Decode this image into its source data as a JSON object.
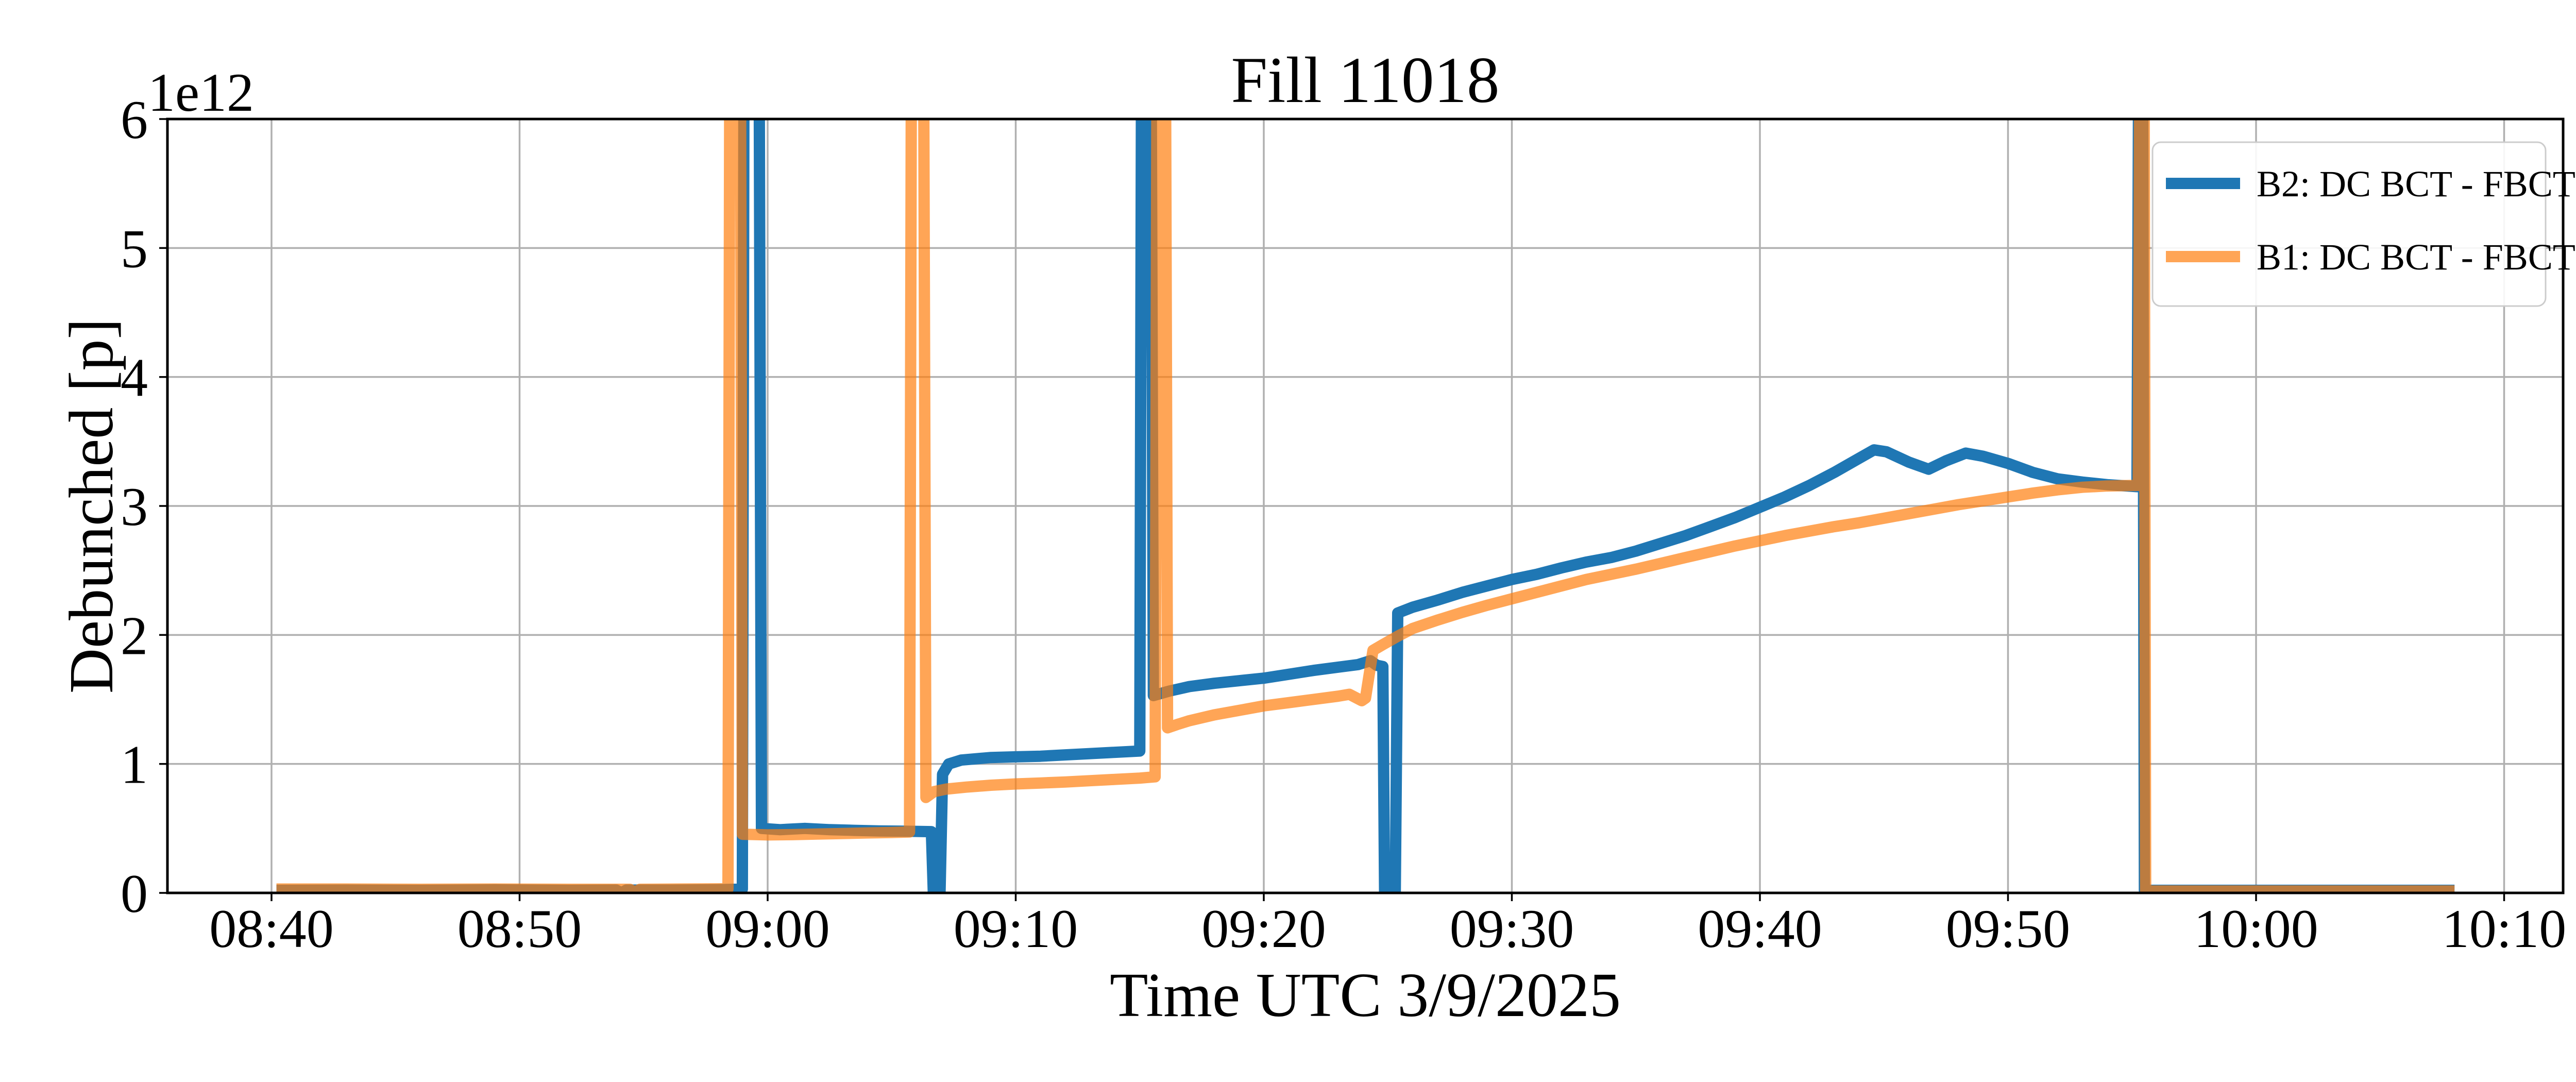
{
  "figure": {
    "title": "Fill 11018",
    "xlabel": "Time UTC 3/9/2025",
    "ylabel": "Debunched [p]",
    "offset_text": "1e12"
  },
  "legend": {
    "entries": [
      {
        "label": "B2: DC BCT - FBCT",
        "color": "#1f77b4",
        "alpha": 1.0
      },
      {
        "label": "B1: DC BCT - FBCT",
        "color": "#ff7f0e",
        "alpha": 0.7
      }
    ]
  },
  "colors": {
    "b2_blue": "#1f77b4",
    "b1_orange": "#ff7f0e",
    "overlap_brown": "#c17d40",
    "grid": "#b0b0b0",
    "spine": "#000000",
    "legend_border": "#cccccc",
    "background": "#ffffff"
  },
  "chart_data": {
    "type": "line",
    "title": "Fill 11018",
    "xlabel": "Time UTC 3/9/2025",
    "ylabel": "Debunched [p]",
    "y_unit_offset": "1e12",
    "grid": true,
    "legend_position": "upper right",
    "ylim": [
      0,
      6
    ],
    "yticks": [
      0,
      1,
      2,
      3,
      4,
      5,
      6
    ],
    "xlim_minutes_after_0840": [
      -4.2,
      92.4
    ],
    "x_ticks": [
      {
        "minutes": 0,
        "label": "08:40"
      },
      {
        "minutes": 10,
        "label": "08:50"
      },
      {
        "minutes": 20,
        "label": "09:00"
      },
      {
        "minutes": 30,
        "label": "09:10"
      },
      {
        "minutes": 40,
        "label": "09:20"
      },
      {
        "minutes": 50,
        "label": "09:30"
      },
      {
        "minutes": 60,
        "label": "09:40"
      },
      {
        "minutes": 70,
        "label": "09:50"
      },
      {
        "minutes": 80,
        "label": "10:00"
      },
      {
        "minutes": 90,
        "label": "10:10"
      }
    ],
    "x_axis_note": "x values below are minutes after 08:40 UTC; y values are in units of 1e12 protons; spikes stored as 7 are off-scale (clipped at ylim 6)",
    "series": [
      {
        "name": "B2: DC BCT - FBCT",
        "color": "#1f77b4",
        "alpha": 1.0,
        "points": [
          [
            0.2,
            0.02
          ],
          [
            3,
            0.022
          ],
          [
            6,
            0.02
          ],
          [
            9,
            0.024
          ],
          [
            12,
            0.02
          ],
          [
            13.9,
            0.022
          ],
          [
            14.1,
            0.0
          ],
          [
            14.3,
            0.022
          ],
          [
            16,
            0.022
          ],
          [
            18,
            0.025
          ],
          [
            18.98,
            0.03
          ],
          [
            19.05,
            7
          ],
          [
            19.65,
            7
          ],
          [
            19.75,
            0.5
          ],
          [
            20.5,
            0.49
          ],
          [
            21.5,
            0.5
          ],
          [
            22.5,
            0.49
          ],
          [
            23.5,
            0.485
          ],
          [
            24.5,
            0.48
          ],
          [
            25.5,
            0.478
          ],
          [
            26.6,
            0.475
          ],
          [
            26.68,
            0.0
          ],
          [
            26.95,
            0.0
          ],
          [
            27.05,
            0.92
          ],
          [
            27.3,
            1.0
          ],
          [
            27.8,
            1.03
          ],
          [
            29,
            1.05
          ],
          [
            30,
            1.055
          ],
          [
            31,
            1.06
          ],
          [
            32,
            1.07
          ],
          [
            33,
            1.08
          ],
          [
            34,
            1.09
          ],
          [
            35.0,
            1.1
          ],
          [
            35.08,
            7
          ],
          [
            35.45,
            7
          ],
          [
            35.55,
            1.53
          ],
          [
            36.2,
            1.565
          ],
          [
            37,
            1.6
          ],
          [
            38,
            1.625
          ],
          [
            39,
            1.645
          ],
          [
            40,
            1.665
          ],
          [
            41,
            1.695
          ],
          [
            42,
            1.725
          ],
          [
            43,
            1.75
          ],
          [
            43.8,
            1.77
          ],
          [
            44.3,
            1.8
          ],
          [
            44.55,
            1.765
          ],
          [
            44.8,
            1.755
          ],
          [
            44.87,
            0.0
          ],
          [
            45.3,
            0.0
          ],
          [
            45.4,
            2.17
          ],
          [
            46,
            2.215
          ],
          [
            47,
            2.27
          ],
          [
            48,
            2.33
          ],
          [
            49,
            2.38
          ],
          [
            50,
            2.43
          ],
          [
            51,
            2.47
          ],
          [
            52,
            2.52
          ],
          [
            53,
            2.565
          ],
          [
            54,
            2.6
          ],
          [
            55,
            2.65
          ],
          [
            56,
            2.71
          ],
          [
            57,
            2.77
          ],
          [
            58,
            2.84
          ],
          [
            59,
            2.91
          ],
          [
            60,
            2.99
          ],
          [
            61,
            3.07
          ],
          [
            62,
            3.16
          ],
          [
            63,
            3.26
          ],
          [
            64,
            3.37
          ],
          [
            64.6,
            3.435
          ],
          [
            65.1,
            3.42
          ],
          [
            66,
            3.34
          ],
          [
            66.8,
            3.285
          ],
          [
            67.5,
            3.35
          ],
          [
            68.3,
            3.41
          ],
          [
            69,
            3.385
          ],
          [
            70,
            3.33
          ],
          [
            71,
            3.26
          ],
          [
            72,
            3.21
          ],
          [
            73,
            3.185
          ],
          [
            74,
            3.165
          ],
          [
            75.2,
            3.15
          ],
          [
            75.28,
            7
          ],
          [
            75.42,
            7
          ],
          [
            75.5,
            0.02
          ],
          [
            78,
            0.02
          ],
          [
            82,
            0.02
          ],
          [
            88,
            0.02
          ]
        ]
      },
      {
        "name": "B1: DC BCT - FBCT",
        "color": "#ff7f0e",
        "alpha": 0.7,
        "points": [
          [
            0.2,
            0.03
          ],
          [
            3,
            0.03
          ],
          [
            6,
            0.028
          ],
          [
            9,
            0.03
          ],
          [
            12,
            0.028
          ],
          [
            14.45,
            0.028
          ],
          [
            14.65,
            0.006
          ],
          [
            14.85,
            0.028
          ],
          [
            16.5,
            0.03
          ],
          [
            18.4,
            0.032
          ],
          [
            18.48,
            7
          ],
          [
            18.9,
            7
          ],
          [
            18.98,
            0.455
          ],
          [
            20,
            0.45
          ],
          [
            21,
            0.452
          ],
          [
            22,
            0.456
          ],
          [
            23,
            0.46
          ],
          [
            24,
            0.465
          ],
          [
            25,
            0.468
          ],
          [
            25.72,
            0.472
          ],
          [
            25.8,
            7
          ],
          [
            26.28,
            7
          ],
          [
            26.38,
            0.74
          ],
          [
            26.7,
            0.785
          ],
          [
            27.2,
            0.805
          ],
          [
            28,
            0.82
          ],
          [
            29,
            0.835
          ],
          [
            30,
            0.845
          ],
          [
            31,
            0.852
          ],
          [
            32,
            0.86
          ],
          [
            33,
            0.87
          ],
          [
            34,
            0.88
          ],
          [
            35,
            0.89
          ],
          [
            35.62,
            0.9
          ],
          [
            35.7,
            7
          ],
          [
            36.03,
            7
          ],
          [
            36.12,
            1.28
          ],
          [
            36.5,
            1.305
          ],
          [
            37,
            1.335
          ],
          [
            38,
            1.38
          ],
          [
            39,
            1.415
          ],
          [
            40,
            1.45
          ],
          [
            41,
            1.475
          ],
          [
            42,
            1.5
          ],
          [
            43,
            1.525
          ],
          [
            43.45,
            1.54
          ],
          [
            43.95,
            1.49
          ],
          [
            44.1,
            1.51
          ],
          [
            44.4,
            1.88
          ],
          [
            44.8,
            1.925
          ],
          [
            45.4,
            1.99
          ],
          [
            46,
            2.05
          ],
          [
            47,
            2.115
          ],
          [
            48,
            2.175
          ],
          [
            49,
            2.23
          ],
          [
            50,
            2.28
          ],
          [
            51,
            2.33
          ],
          [
            52,
            2.38
          ],
          [
            53,
            2.43
          ],
          [
            54,
            2.47
          ],
          [
            55,
            2.51
          ],
          [
            56,
            2.555
          ],
          [
            57,
            2.6
          ],
          [
            58,
            2.645
          ],
          [
            59,
            2.69
          ],
          [
            60,
            2.73
          ],
          [
            61,
            2.77
          ],
          [
            62,
            2.805
          ],
          [
            63,
            2.84
          ],
          [
            64,
            2.87
          ],
          [
            65,
            2.905
          ],
          [
            66,
            2.94
          ],
          [
            67,
            2.975
          ],
          [
            68,
            3.01
          ],
          [
            69,
            3.04
          ],
          [
            70,
            3.07
          ],
          [
            71,
            3.1
          ],
          [
            72,
            3.125
          ],
          [
            73,
            3.145
          ],
          [
            74,
            3.155
          ],
          [
            75.25,
            3.16
          ],
          [
            75.32,
            7
          ],
          [
            75.48,
            7
          ],
          [
            75.55,
            0.015
          ],
          [
            78,
            0.015
          ],
          [
            82,
            0.015
          ],
          [
            88,
            0.015
          ]
        ]
      }
    ]
  }
}
